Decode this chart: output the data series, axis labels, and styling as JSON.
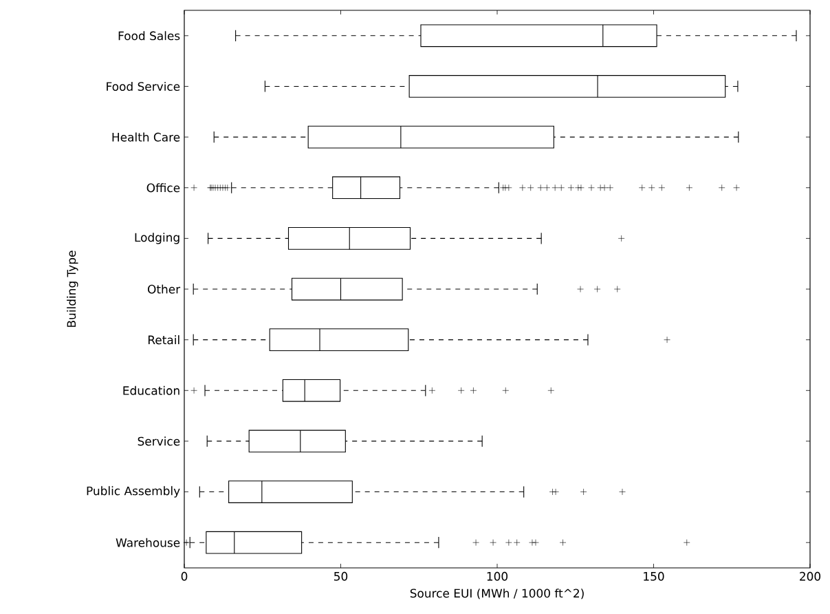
{
  "chart_data": {
    "type": "box",
    "orientation": "horizontal",
    "xlabel": "Source EUI (MWh / 1000 ft^2)",
    "ylabel": "Building Type",
    "categories": [
      "Food Sales",
      "Food Service",
      "Health Care",
      "Office",
      "Lodging",
      "Other",
      "Retail",
      "Education",
      "Service",
      "Public Assembly",
      "Warehouse"
    ],
    "boxes": [
      {
        "low": 16.4,
        "q1": 75.6,
        "median": 133.8,
        "q3": 151,
        "high": 195.6
      },
      {
        "low": 25.8,
        "q1": 71.9,
        "median": 132.1,
        "q3": 172.9,
        "high": 176.9
      },
      {
        "low": 9.5,
        "q1": 39.6,
        "median": 69.2,
        "q3": 118.1,
        "high": 177.1
      },
      {
        "low": 15.1,
        "q1": 47.4,
        "median": 56.4,
        "q3": 68.9,
        "high": 100.5,
        "outliers": [
          3.1,
          8.3,
          8.6,
          9.2,
          9.9,
          10.7,
          11.5,
          12.3,
          13.1,
          13.8,
          101.9,
          102.6,
          103.7,
          108.1,
          110.7,
          113.9,
          115.9,
          118.5,
          120.5,
          123.6,
          125.9,
          126.8,
          130.1,
          133,
          134.3,
          136.1,
          146.3,
          149.4,
          152.6,
          161.4,
          171.8,
          176.5
        ]
      },
      {
        "low": 7.6,
        "q1": 33.3,
        "median": 52.8,
        "q3": 72.2,
        "high": 114.1,
        "outliers": [
          139.7
        ]
      },
      {
        "low": 2.9,
        "q1": 34.4,
        "median": 50,
        "q3": 69.7,
        "high": 112.8,
        "outliers": [
          126.6,
          132,
          138.4
        ]
      },
      {
        "low": 2.9,
        "q1": 27.3,
        "median": 43.3,
        "q3": 71.6,
        "high": 129,
        "outliers": [
          154.3
        ]
      },
      {
        "low": 6.6,
        "q1": 31.5,
        "median": 38.5,
        "q3": 49.8,
        "high": 77.1,
        "outliers": [
          3.1,
          79.2,
          88.5,
          92.4,
          102.7,
          117.2
        ]
      },
      {
        "low": 7.3,
        "q1": 20.7,
        "median": 37.1,
        "q3": 51.5,
        "high": 95.2
      },
      {
        "low": 4.9,
        "q1": 14.2,
        "median": 24.8,
        "q3": 53.7,
        "high": 108.5,
        "outliers": [
          117.7,
          118.7,
          127.6,
          140
        ]
      },
      {
        "low": 1.8,
        "q1": 7,
        "median": 16,
        "q3": 37.5,
        "high": 81.3,
        "outliers": [
          0.7,
          93.2,
          98.7,
          103.7,
          106.3,
          111.2,
          112.3,
          121,
          160.6
        ]
      }
    ],
    "color": "#000000",
    "marker": "cross",
    "line_style": "dashed",
    "xlim": [
      0,
      200
    ],
    "xticks": [
      0,
      50,
      100,
      150,
      200
    ]
  }
}
